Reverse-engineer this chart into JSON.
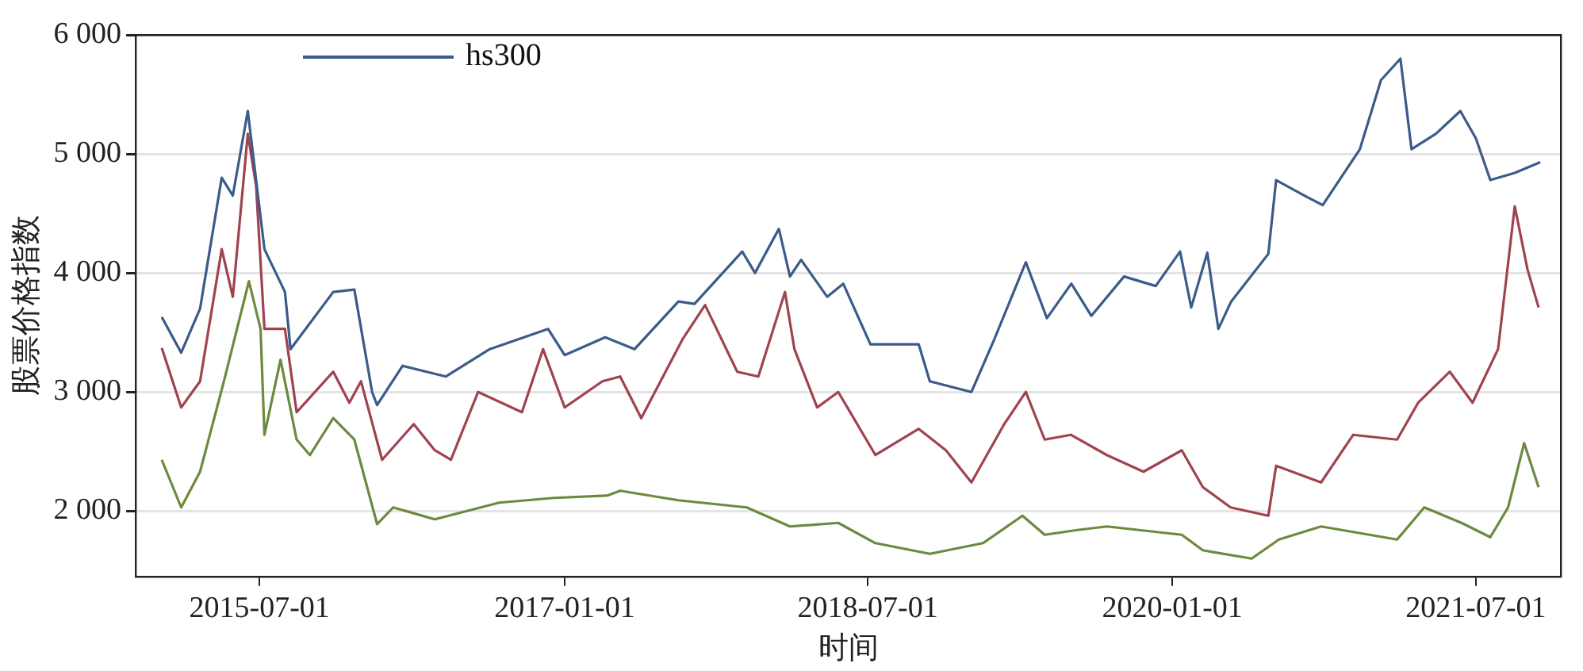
{
  "chart_data": {
    "type": "line",
    "xlabel": "时间",
    "ylabel": "股票价格指数",
    "xlim": [
      "2014-11-20",
      "2021-12-01"
    ],
    "xticks": [
      "2015-07-01",
      "2017-01-01",
      "2018-07-01",
      "2020-01-01",
      "2021-07-01"
    ],
    "ylim": [
      1450,
      6000
    ],
    "yticks": [
      {
        "value": 2000,
        "label": "2 000"
      },
      {
        "value": 3000,
        "label": "3 000"
      },
      {
        "value": 4000,
        "label": "4 000"
      },
      {
        "value": 5000,
        "label": "5 000"
      },
      {
        "value": 6000,
        "label": "6 000"
      }
    ],
    "grid": "y",
    "legend": "top",
    "marker": "none",
    "line_style": "solid",
    "series": [
      {
        "name": "hs300",
        "color": "#3b5b8a",
        "x": [
          "2015-01-06",
          "2015-02-10",
          "2015-03-16",
          "2015-04-24",
          "2015-05-14",
          "2015-06-10",
          "2015-07-10",
          "2015-08-16",
          "2015-08-26",
          "2015-11-11",
          "2015-12-19",
          "2016-01-20",
          "2016-01-29",
          "2016-03-15",
          "2016-06-01",
          "2016-08-19",
          "2016-12-02",
          "2017-01-01",
          "2017-03-15",
          "2017-05-07",
          "2017-07-25",
          "2017-08-23",
          "2017-11-17",
          "2017-12-10",
          "2018-01-22",
          "2018-02-11",
          "2018-03-03",
          "2018-04-19",
          "2018-05-18",
          "2018-07-06",
          "2018-10-01",
          "2018-10-21",
          "2019-01-04",
          "2019-02-14",
          "2019-04-12",
          "2019-05-20",
          "2019-07-03",
          "2019-08-08",
          "2019-10-06",
          "2019-12-02",
          "2020-01-15",
          "2020-02-04",
          "2020-03-04",
          "2020-03-24",
          "2020-04-16",
          "2020-06-22",
          "2020-07-06",
          "2020-08-30",
          "2020-09-28",
          "2020-12-04",
          "2021-01-11",
          "2021-02-15",
          "2021-03-07",
          "2021-04-20",
          "2021-06-03",
          "2021-07-01",
          "2021-07-27",
          "2021-09-09",
          "2021-10-25"
        ],
        "values": [
          3630,
          3330,
          3700,
          4800,
          4650,
          5360,
          4200,
          3840,
          3360,
          3840,
          3860,
          3000,
          2890,
          3220,
          3130,
          3360,
          3530,
          3310,
          3460,
          3360,
          3760,
          3740,
          4180,
          4000,
          4370,
          3970,
          4110,
          3800,
          3910,
          3400,
          3400,
          3090,
          3000,
          3440,
          4090,
          3620,
          3910,
          3640,
          3970,
          3890,
          4180,
          3710,
          4170,
          3530,
          3760,
          4160,
          4780,
          4640,
          4570,
          5040,
          5620,
          5800,
          5040,
          5170,
          5360,
          5130,
          4780,
          4840,
          4930
        ]
      },
      {
        "color": "#a0434f",
        "x": [
          "2015-01-06",
          "2015-02-10",
          "2015-03-16",
          "2015-04-24",
          "2015-05-14",
          "2015-06-10",
          "2015-06-25",
          "2015-07-10",
          "2015-08-16",
          "2015-09-06",
          "2015-11-11",
          "2015-12-10",
          "2015-12-31",
          "2016-02-07",
          "2016-04-04",
          "2016-05-12",
          "2016-06-10",
          "2016-07-29",
          "2016-10-16",
          "2016-11-23",
          "2017-01-01",
          "2017-03-10",
          "2017-04-11",
          "2017-05-19",
          "2017-08-01",
          "2017-09-11",
          "2017-11-08",
          "2017-12-16",
          "2018-02-02",
          "2018-02-19",
          "2018-04-01",
          "2018-05-09",
          "2018-07-15",
          "2018-10-01",
          "2018-11-19",
          "2019-01-04",
          "2019-03-04",
          "2019-04-12",
          "2019-05-16",
          "2019-07-02",
          "2019-09-05",
          "2019-11-10",
          "2020-01-18",
          "2020-02-25",
          "2020-04-15",
          "2020-06-22",
          "2020-07-06",
          "2020-09-25",
          "2020-11-22",
          "2021-02-09",
          "2021-03-19",
          "2021-05-15",
          "2021-06-25",
          "2021-08-10",
          "2021-09-09",
          "2021-10-02",
          "2021-10-22"
        ],
        "values": [
          3370,
          2870,
          3090,
          4200,
          3800,
          5170,
          4730,
          3530,
          3530,
          2830,
          3170,
          2910,
          3090,
          2430,
          2730,
          2510,
          2430,
          3000,
          2830,
          3360,
          2870,
          3090,
          3130,
          2780,
          3440,
          3730,
          3170,
          3130,
          3840,
          3360,
          2870,
          3000,
          2470,
          2690,
          2510,
          2240,
          2730,
          3000,
          2600,
          2640,
          2470,
          2330,
          2510,
          2200,
          2030,
          1960,
          2380,
          2240,
          2640,
          2600,
          2910,
          3170,
          2910,
          3360,
          4560,
          4030,
          3710
        ]
      },
      {
        "color": "#6b8a3f",
        "x": [
          "2015-01-06",
          "2015-02-10",
          "2015-03-16",
          "2015-04-28",
          "2015-06-12",
          "2015-07-03",
          "2015-07-10",
          "2015-08-08",
          "2015-09-06",
          "2015-09-30",
          "2015-11-11",
          "2015-12-19",
          "2016-01-29",
          "2016-02-27",
          "2016-05-12",
          "2016-09-05",
          "2016-12-13",
          "2017-03-19",
          "2017-04-11",
          "2017-07-25",
          "2017-11-25",
          "2018-02-11",
          "2018-05-09",
          "2018-07-15",
          "2018-10-21",
          "2019-01-25",
          "2019-04-06",
          "2019-05-16",
          "2019-07-14",
          "2019-09-05",
          "2020-01-18",
          "2020-02-25",
          "2020-05-23",
          "2020-07-11",
          "2020-09-25",
          "2021-02-09",
          "2021-03-30",
          "2021-06-05",
          "2021-07-27",
          "2021-08-28",
          "2021-09-26",
          "2021-10-22"
        ],
        "values": [
          2430,
          2030,
          2330,
          3090,
          3930,
          3530,
          2640,
          3270,
          2600,
          2470,
          2780,
          2600,
          1890,
          2030,
          1930,
          2070,
          2110,
          2130,
          2170,
          2090,
          2030,
          1870,
          1900,
          1730,
          1640,
          1730,
          1960,
          1800,
          1840,
          1870,
          1800,
          1670,
          1600,
          1760,
          1870,
          1760,
          2030,
          1900,
          1780,
          2030,
          2570,
          2200
        ]
      }
    ]
  }
}
